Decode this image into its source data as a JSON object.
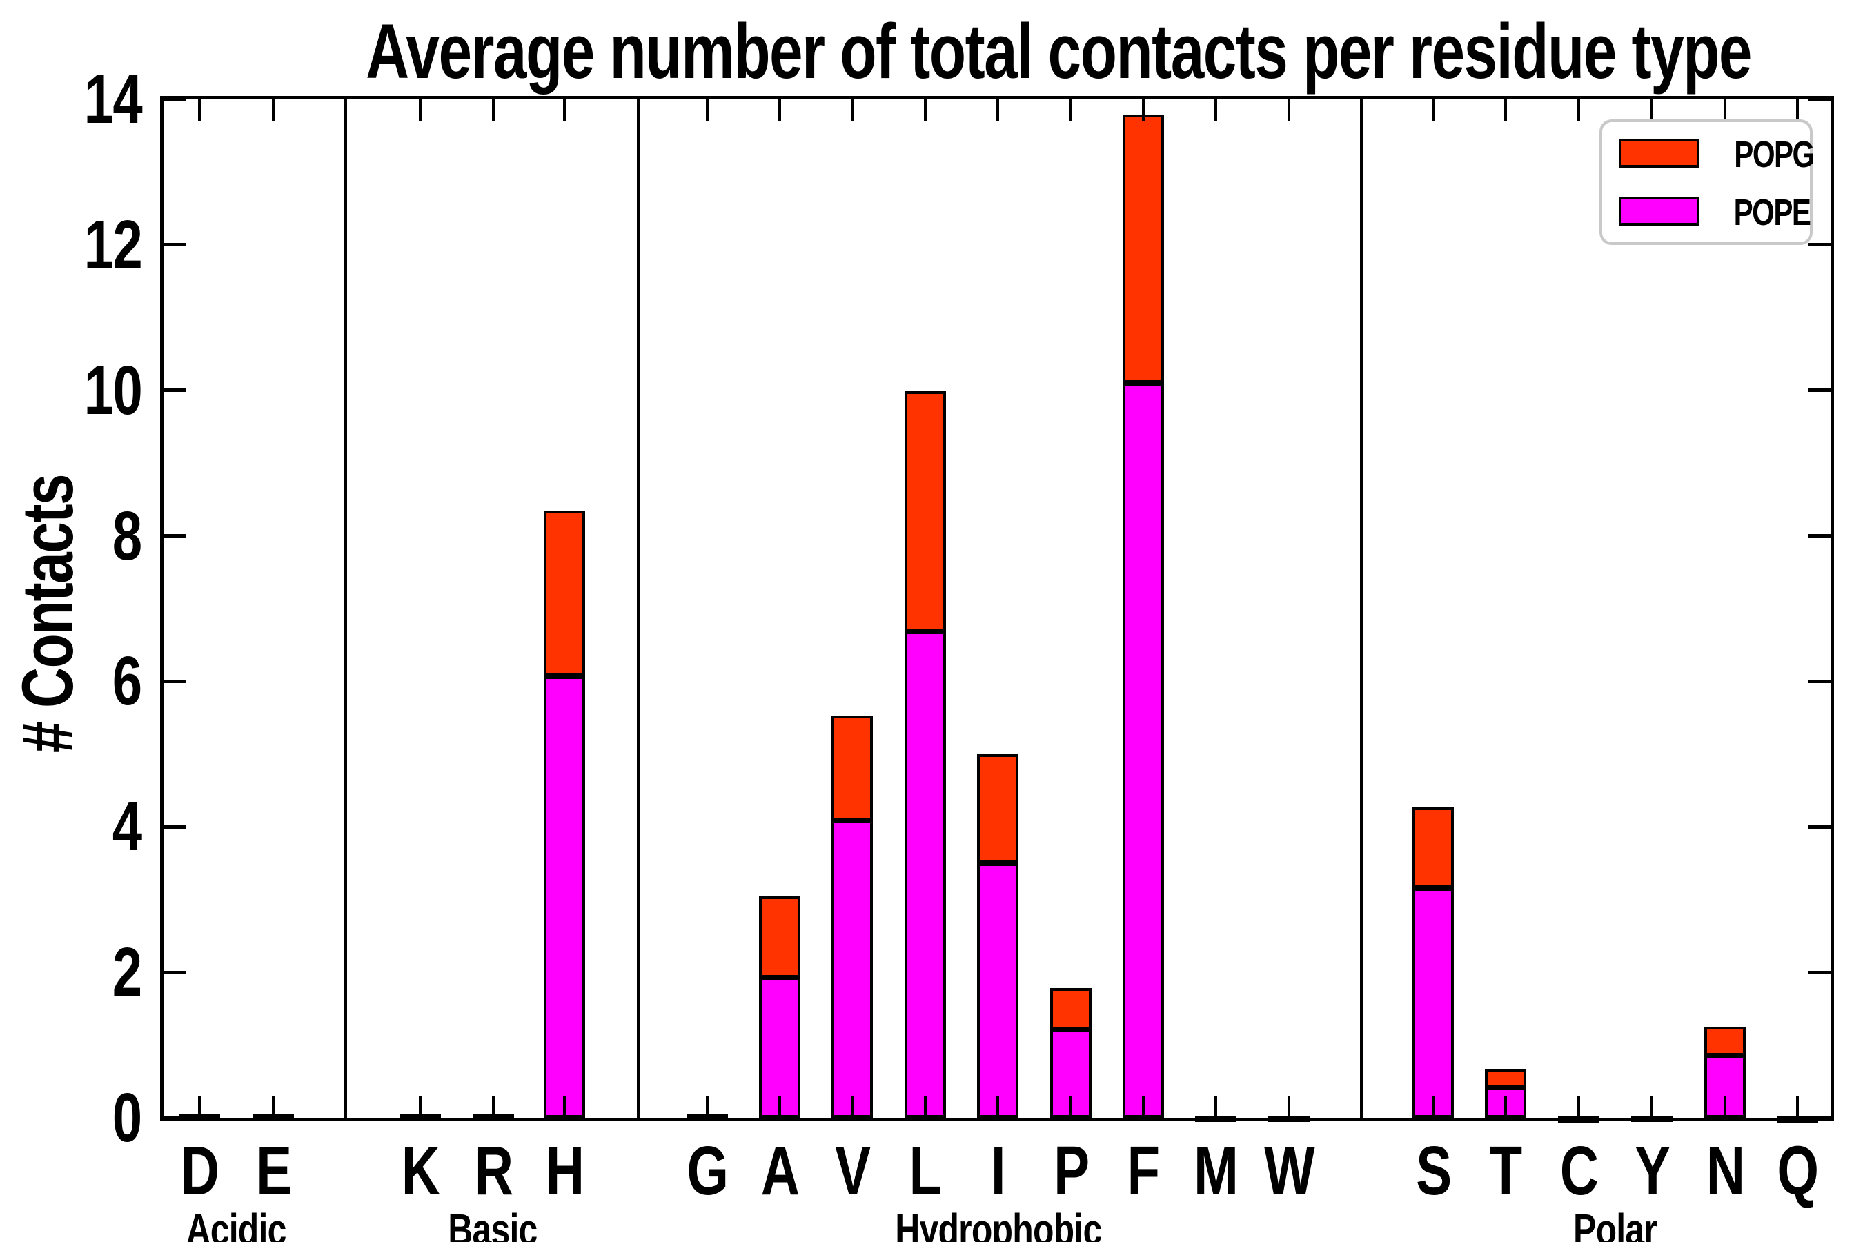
{
  "title": "Average number of total contacts per residue type",
  "y_axis": {
    "label": "# Contacts",
    "ticks": [
      0,
      2,
      4,
      6,
      8,
      10,
      12,
      14
    ],
    "range": [
      0,
      14
    ]
  },
  "legend": {
    "items": [
      {
        "label": "POPG",
        "color": "#ff3300"
      },
      {
        "label": "POPE",
        "color": "#ff00ff"
      }
    ]
  },
  "chart_data": {
    "type": "bar",
    "stacked": true,
    "title": "Average number of total contacts per residue type",
    "xlabel": "",
    "ylabel": "# Contacts",
    "ylim": [
      0,
      14
    ],
    "grid": false,
    "legend_position": "upper right",
    "categories": [
      "D",
      "E",
      "K",
      "R",
      "H",
      "G",
      "A",
      "V",
      "L",
      "I",
      "P",
      "F",
      "M",
      "W",
      "S",
      "T",
      "C",
      "Y",
      "N",
      "Q"
    ],
    "groups": [
      {
        "label": "Acidic",
        "categories": [
          "D",
          "E"
        ]
      },
      {
        "label": "Basic",
        "categories": [
          "K",
          "R",
          "H"
        ]
      },
      {
        "label": "Hydrophobic",
        "categories": [
          "G",
          "A",
          "V",
          "L",
          "I",
          "P",
          "F",
          "M",
          "W"
        ]
      },
      {
        "label": "Polar",
        "categories": [
          "S",
          "T",
          "C",
          "Y",
          "N",
          "Q"
        ]
      }
    ],
    "series": [
      {
        "name": "POPE",
        "color": "#ff00ff",
        "values": [
          0.03,
          0.03,
          0.03,
          0.03,
          6.07,
          0.03,
          1.93,
          4.09,
          6.69,
          3.5,
          1.21,
          10.1,
          0.02,
          0.02,
          3.16,
          0.42,
          0.01,
          0.02,
          0.85,
          0.01
        ]
      },
      {
        "name": "POPG",
        "color": "#ff3300",
        "values": [
          0.02,
          0.02,
          0.02,
          0.02,
          2.28,
          0.02,
          1.11,
          1.44,
          3.3,
          1.5,
          0.57,
          3.69,
          0.01,
          0.01,
          1.11,
          0.25,
          0.01,
          0.01,
          0.4,
          0.01
        ]
      }
    ],
    "totals": [
      0.05,
      0.05,
      0.05,
      0.05,
      8.35,
      0.05,
      3.04,
      5.53,
      9.99,
      5.0,
      1.78,
      13.79,
      0.03,
      0.03,
      4.27,
      0.67,
      0.02,
      0.03,
      1.25,
      0.02
    ]
  }
}
